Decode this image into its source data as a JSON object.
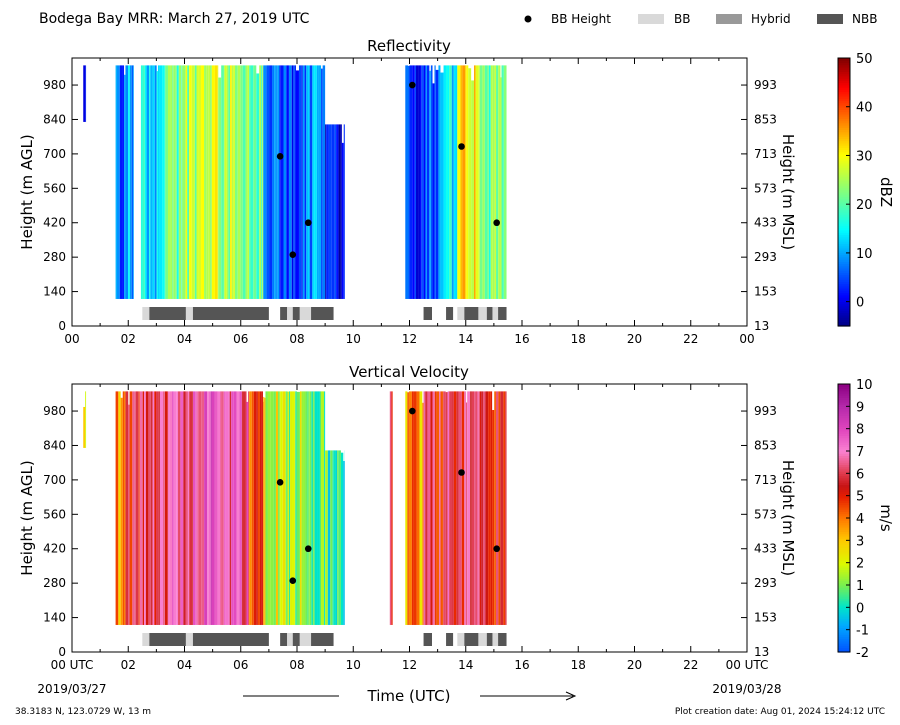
{
  "header": {
    "title": "Bodega Bay MRR:  March 27, 2019 UTC",
    "legend": {
      "bb_height": "BB Height",
      "bb": "BB",
      "hybrid": "Hybrid",
      "nbb": "NBB"
    }
  },
  "colors": {
    "bb": "#d9d9d9",
    "hybrid": "#999999",
    "nbb": "#555555",
    "marker": "#000000"
  },
  "chart_data": [
    {
      "type": "heatmap",
      "title": "Reflectivity",
      "ylabel": "Height (m AGL)",
      "ylabel_right": "Height (m MSL)",
      "xlim": [
        0,
        24
      ],
      "ylim": [
        0,
        1090
      ],
      "x_ticks": [
        "00",
        "02",
        "04",
        "06",
        "08",
        "10",
        "12",
        "14",
        "16",
        "18",
        "20",
        "22",
        "00"
      ],
      "y_ticks": [
        0,
        140,
        280,
        420,
        560,
        700,
        840,
        980
      ],
      "y_ticks_right": [
        "13",
        "153",
        "293",
        "433",
        "573",
        "713",
        "853",
        "993"
      ],
      "colorbar": {
        "label": "dBZ",
        "range": [
          -5,
          50
        ],
        "ticks": [
          0,
          10,
          20,
          30,
          40,
          50
        ],
        "colormap": "jet"
      },
      "bb_height_points": [
        {
          "x": 7.4,
          "y": 690
        },
        {
          "x": 7.85,
          "y": 290
        },
        {
          "x": 8.4,
          "y": 420
        },
        {
          "x": 12.1,
          "y": 980
        },
        {
          "x": 13.85,
          "y": 730
        },
        {
          "x": 15.1,
          "y": 420
        }
      ],
      "bb_class_segments": [
        {
          "start": 2.5,
          "end": 2.75,
          "class": "BB"
        },
        {
          "start": 2.75,
          "end": 4.05,
          "class": "NBB"
        },
        {
          "start": 4.05,
          "end": 4.3,
          "class": "BB"
        },
        {
          "start": 4.3,
          "end": 7.0,
          "class": "NBB"
        },
        {
          "start": 7.4,
          "end": 7.65,
          "class": "NBB"
        },
        {
          "start": 7.65,
          "end": 7.85,
          "class": "BB"
        },
        {
          "start": 7.85,
          "end": 8.1,
          "class": "NBB"
        },
        {
          "start": 8.1,
          "end": 8.5,
          "class": "BB"
        },
        {
          "start": 8.5,
          "end": 9.3,
          "class": "NBB"
        },
        {
          "start": 12.5,
          "end": 12.8,
          "class": "NBB"
        },
        {
          "start": 13.3,
          "end": 13.55,
          "class": "NBB"
        },
        {
          "start": 13.7,
          "end": 13.95,
          "class": "BB"
        },
        {
          "start": 13.95,
          "end": 14.45,
          "class": "NBB"
        },
        {
          "start": 14.45,
          "end": 14.75,
          "class": "BB"
        },
        {
          "start": 14.75,
          "end": 14.95,
          "class": "NBB"
        },
        {
          "start": 14.95,
          "end": 15.15,
          "class": "BB"
        },
        {
          "start": 15.15,
          "end": 15.45,
          "class": "NBB"
        }
      ],
      "field_segments": [
        {
          "start": 0.4,
          "end": 0.5,
          "value": 2,
          "top": 1060,
          "bottom": 830
        },
        {
          "start": 1.55,
          "end": 1.9,
          "value": 6,
          "top": 1060,
          "bottom": 110
        },
        {
          "start": 1.9,
          "end": 2.2,
          "value": 10,
          "top": 1060,
          "bottom": 110
        },
        {
          "start": 2.45,
          "end": 3.3,
          "value": 14,
          "top": 1060,
          "bottom": 110
        },
        {
          "start": 3.3,
          "end": 3.9,
          "value": 20,
          "top": 1060,
          "bottom": 110
        },
        {
          "start": 3.9,
          "end": 4.5,
          "value": 26,
          "top": 1060,
          "bottom": 110
        },
        {
          "start": 4.5,
          "end": 5.2,
          "value": 28,
          "top": 1060,
          "bottom": 110
        },
        {
          "start": 5.2,
          "end": 6.3,
          "value": 25,
          "top": 1060,
          "bottom": 110
        },
        {
          "start": 6.3,
          "end": 6.8,
          "value": 20,
          "top": 1060,
          "bottom": 110
        },
        {
          "start": 6.8,
          "end": 7.3,
          "value": 6,
          "top": 1060,
          "bottom": 110
        },
        {
          "start": 7.3,
          "end": 8.2,
          "value": 5,
          "top": 1060,
          "bottom": 110
        },
        {
          "start": 8.2,
          "end": 9.0,
          "value": 8,
          "top": 1060,
          "bottom": 110
        },
        {
          "start": 9.0,
          "end": 9.7,
          "value": 2,
          "top": 820,
          "bottom": 110
        },
        {
          "start": 11.85,
          "end": 12.5,
          "value": 4,
          "top": 1060,
          "bottom": 110
        },
        {
          "start": 12.5,
          "end": 13.1,
          "value": 7,
          "top": 1060,
          "bottom": 110
        },
        {
          "start": 13.1,
          "end": 13.7,
          "value": 14,
          "top": 1060,
          "bottom": 110
        },
        {
          "start": 13.7,
          "end": 14.5,
          "value": 30,
          "top": 1060,
          "bottom": 110
        },
        {
          "start": 14.5,
          "end": 15.45,
          "value": 22,
          "top": 1060,
          "bottom": 110
        }
      ]
    },
    {
      "type": "heatmap",
      "title": "Vertical Velocity",
      "ylabel": "Height (m AGL)",
      "ylabel_right": "Height (m MSL)",
      "xlabel": "Time (UTC)",
      "xlim": [
        0,
        24
      ],
      "ylim": [
        0,
        1090
      ],
      "x_ticks": [
        "00 UTC",
        "02",
        "04",
        "06",
        "08",
        "10",
        "12",
        "14",
        "16",
        "18",
        "20",
        "22",
        "00 UTC"
      ],
      "x_dates": [
        "2019/03/27",
        "2019/03/28"
      ],
      "y_ticks": [
        0,
        140,
        280,
        420,
        560,
        700,
        840,
        980
      ],
      "y_ticks_right": [
        "13",
        "153",
        "293",
        "433",
        "573",
        "713",
        "853",
        "993"
      ],
      "colorbar": {
        "label": "m/s",
        "range": [
          -2,
          10
        ],
        "ticks": [
          -2,
          -1,
          0,
          1,
          2,
          3,
          4,
          5,
          6,
          7,
          8,
          9,
          10
        ],
        "tick_labels": [
          "-2",
          "-1",
          "0",
          "1",
          "2",
          "3",
          "4",
          "5",
          "6",
          "7",
          "8",
          "9",
          "10"
        ],
        "colormap": "velocity"
      },
      "bb_height_points": [
        {
          "x": 7.4,
          "y": 690
        },
        {
          "x": 7.85,
          "y": 290
        },
        {
          "x": 8.4,
          "y": 420
        },
        {
          "x": 12.1,
          "y": 980
        },
        {
          "x": 13.85,
          "y": 730
        },
        {
          "x": 15.1,
          "y": 420
        }
      ],
      "bb_class_segments": [
        {
          "start": 2.5,
          "end": 2.75,
          "class": "BB"
        },
        {
          "start": 2.75,
          "end": 4.05,
          "class": "NBB"
        },
        {
          "start": 4.05,
          "end": 4.3,
          "class": "BB"
        },
        {
          "start": 4.3,
          "end": 7.0,
          "class": "NBB"
        },
        {
          "start": 7.4,
          "end": 7.65,
          "class": "NBB"
        },
        {
          "start": 7.65,
          "end": 7.85,
          "class": "BB"
        },
        {
          "start": 7.85,
          "end": 8.1,
          "class": "NBB"
        },
        {
          "start": 8.1,
          "end": 8.5,
          "class": "BB"
        },
        {
          "start": 8.5,
          "end": 9.3,
          "class": "NBB"
        },
        {
          "start": 12.5,
          "end": 12.8,
          "class": "NBB"
        },
        {
          "start": 13.3,
          "end": 13.55,
          "class": "NBB"
        },
        {
          "start": 13.7,
          "end": 13.95,
          "class": "BB"
        },
        {
          "start": 13.95,
          "end": 14.45,
          "class": "NBB"
        },
        {
          "start": 14.45,
          "end": 14.75,
          "class": "BB"
        },
        {
          "start": 14.75,
          "end": 14.95,
          "class": "NBB"
        },
        {
          "start": 14.95,
          "end": 15.15,
          "class": "BB"
        },
        {
          "start": 15.15,
          "end": 15.45,
          "class": "NBB"
        }
      ],
      "field_segments": [
        {
          "start": 0.4,
          "end": 0.5,
          "value": 2,
          "top": 1060,
          "bottom": 830
        },
        {
          "start": 1.55,
          "end": 1.9,
          "value": 3.5,
          "top": 1060,
          "bottom": 110
        },
        {
          "start": 1.9,
          "end": 2.4,
          "value": 5.5,
          "top": 1060,
          "bottom": 110
        },
        {
          "start": 2.4,
          "end": 3.3,
          "value": 6,
          "top": 1060,
          "bottom": 110
        },
        {
          "start": 3.3,
          "end": 4.3,
          "value": 6.5,
          "top": 1060,
          "bottom": 110
        },
        {
          "start": 4.3,
          "end": 5.3,
          "value": 7.5,
          "top": 1060,
          "bottom": 110
        },
        {
          "start": 5.3,
          "end": 6.3,
          "value": 7,
          "top": 1060,
          "bottom": 110
        },
        {
          "start": 6.3,
          "end": 6.8,
          "value": 5,
          "top": 1060,
          "bottom": 110
        },
        {
          "start": 6.8,
          "end": 7.4,
          "value": 2.2,
          "top": 1060,
          "bottom": 110
        },
        {
          "start": 7.4,
          "end": 8.3,
          "value": 1.5,
          "top": 1060,
          "bottom": 110
        },
        {
          "start": 8.3,
          "end": 9.0,
          "value": 0.8,
          "top": 1060,
          "bottom": 110
        },
        {
          "start": 9.0,
          "end": 9.7,
          "value": 0.3,
          "top": 820,
          "bottom": 110
        },
        {
          "start": 11.3,
          "end": 11.4,
          "value": 6,
          "top": 1060,
          "bottom": 110
        },
        {
          "start": 11.85,
          "end": 12.5,
          "value": 3.5,
          "top": 1060,
          "bottom": 110
        },
        {
          "start": 12.5,
          "end": 13.2,
          "value": 5.5,
          "top": 1060,
          "bottom": 110
        },
        {
          "start": 13.2,
          "end": 14.4,
          "value": 6,
          "top": 1060,
          "bottom": 110
        },
        {
          "start": 14.4,
          "end": 15.45,
          "value": 5.5,
          "top": 1060,
          "bottom": 110
        }
      ]
    }
  ],
  "footer": {
    "location": "38.3183 N, 123.0729 W, 13 m",
    "creation": "Plot creation date: Aug 01, 2024 15:24:12 UTC"
  }
}
